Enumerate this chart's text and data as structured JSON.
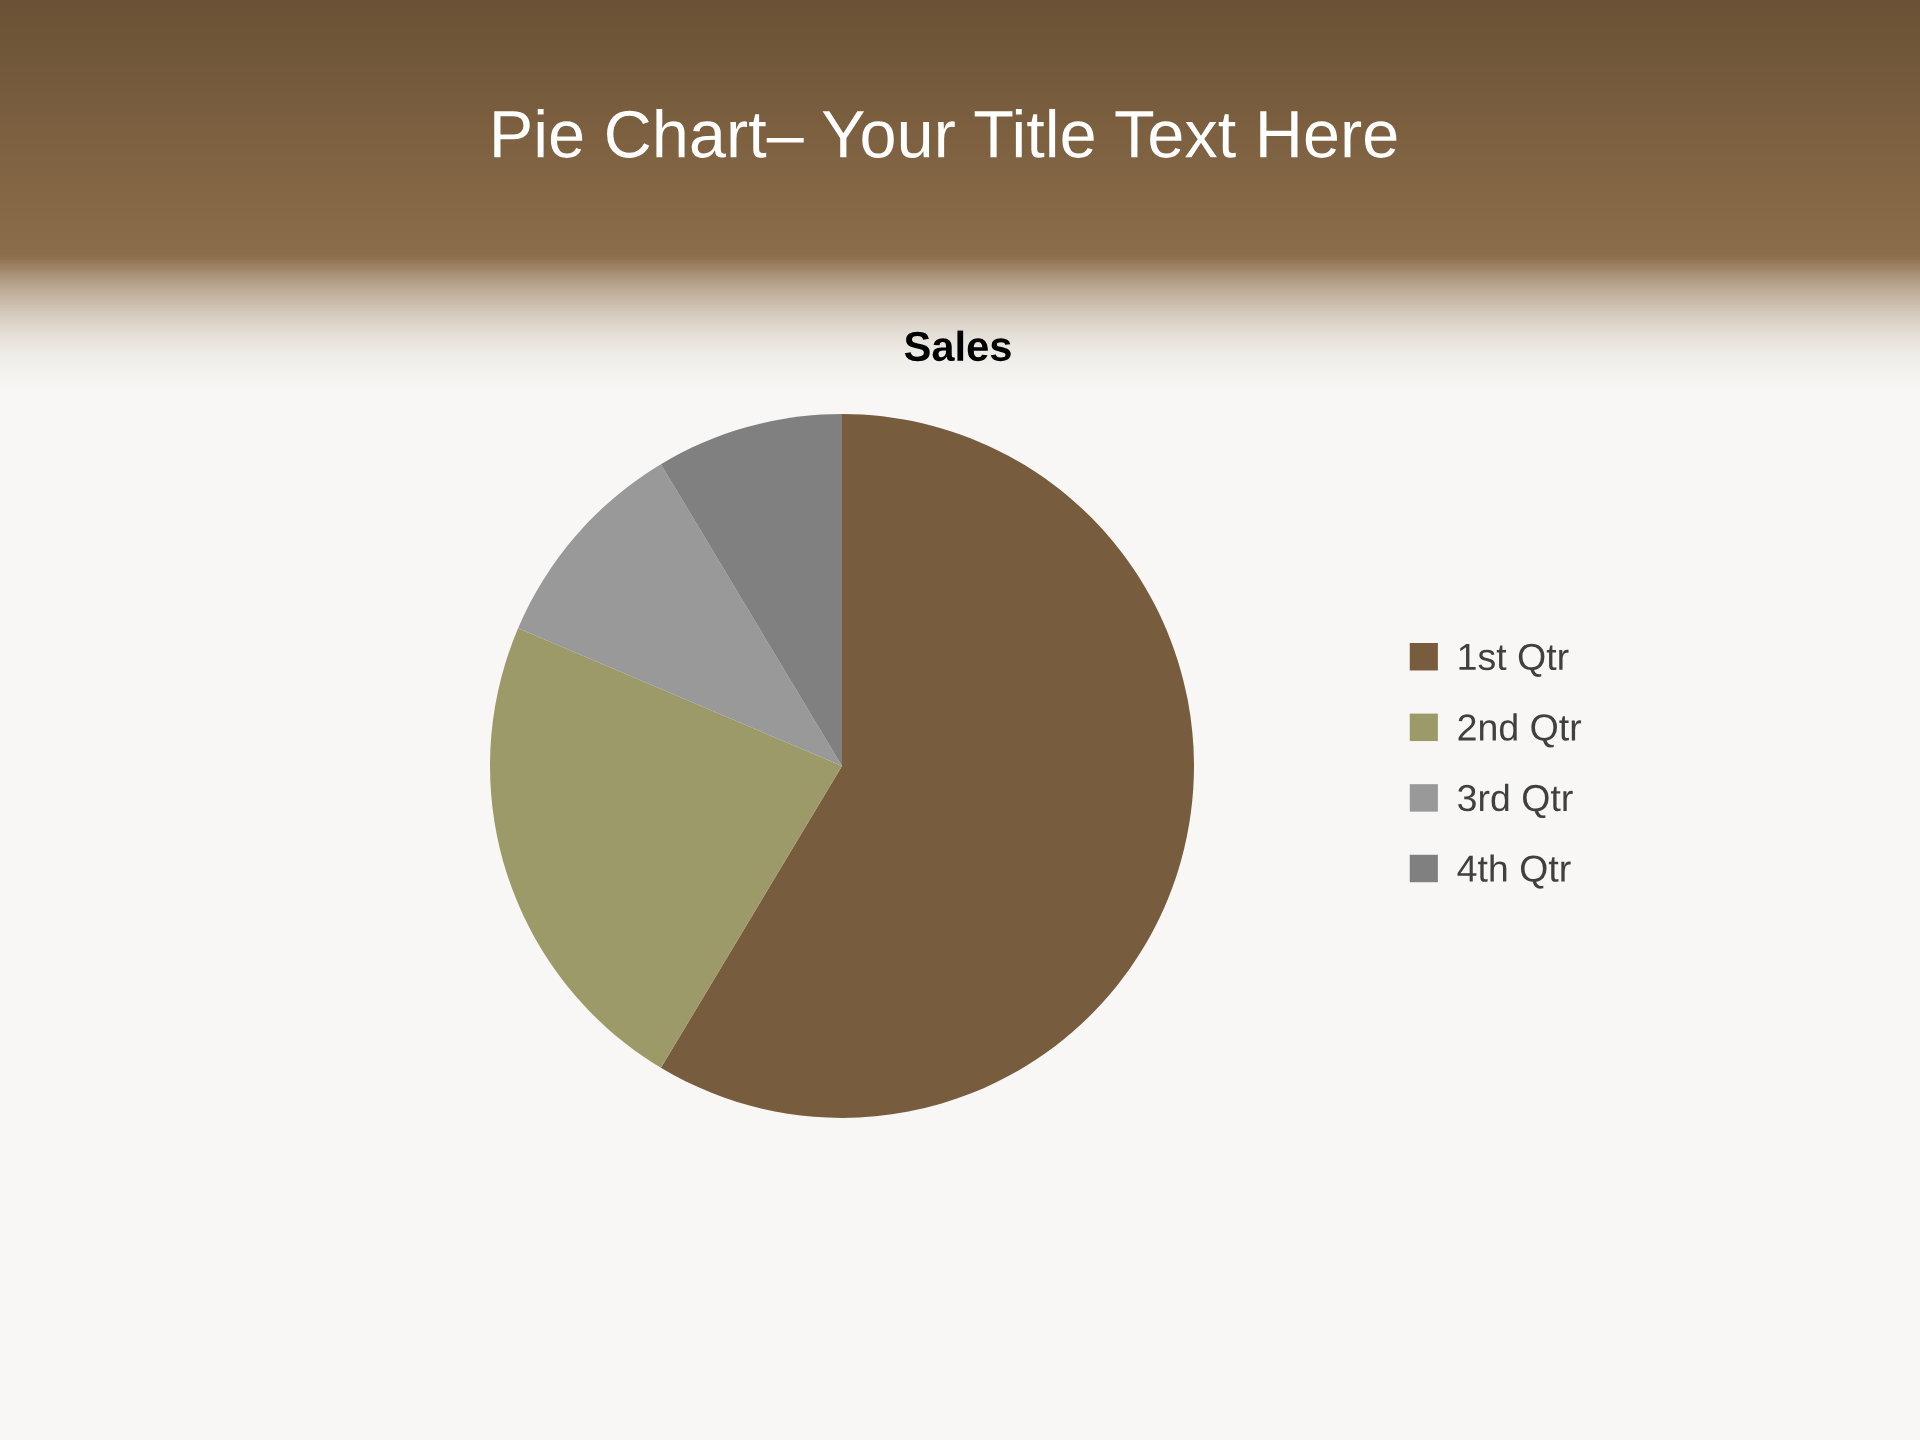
{
  "chart_data": {
    "type": "pie",
    "title": "Pie Chart– Your Title Text Here",
    "subtitle": "Sales",
    "categories": [
      "1st Qtr",
      "2nd Qtr",
      "3rd Qtr",
      "4th Qtr"
    ],
    "values": [
      58.6,
      22.8,
      10.0,
      8.6
    ],
    "colors": [
      "#775c3e",
      "#9c9a68",
      "#999999",
      "#808080"
    ],
    "legend": "right"
  }
}
